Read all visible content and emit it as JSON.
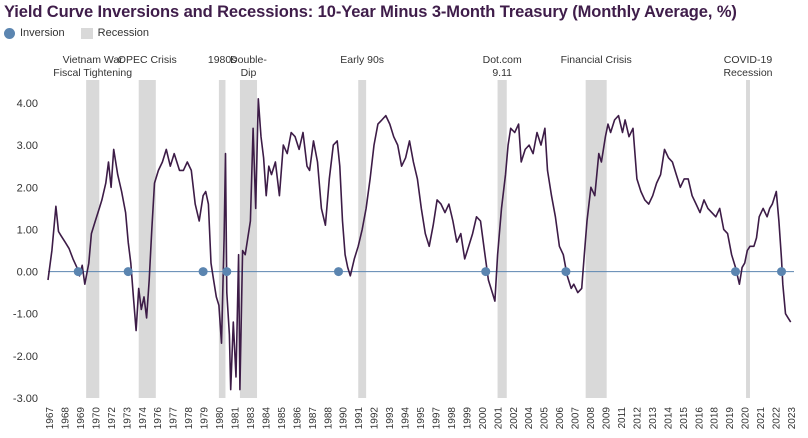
{
  "title": "Yield Curve Inversions and Recessions: 10-Year Minus 3-Month Treasury (Monthly Average, %)",
  "legend": {
    "inversion": "Inversion",
    "recession": "Recession"
  },
  "colors": {
    "line": "#3d1c47",
    "inversion": "#5b85b0",
    "recession": "#d9d9d9",
    "zero_line": "#5b85b0"
  },
  "chart_data": {
    "type": "line",
    "title": "Yield Curve Inversions and Recessions: 10-Year Minus 3-Month Treasury (Monthly Average, %)",
    "xlabel": "",
    "ylabel": "",
    "ylim": [
      -3.0,
      4.25
    ],
    "xlim": [
      1967.0,
      2023.75
    ],
    "y_ticks": [
      4.0,
      3.0,
      2.0,
      1.0,
      0.0,
      -1.0,
      -2.0,
      -3.0
    ],
    "y_tick_labels": [
      "4.00",
      "3.00",
      "2.00",
      "1.00",
      "0.00",
      "-1.00",
      "-2.00",
      "-3.00"
    ],
    "x_tick_labels": [
      "1967",
      "1968",
      "1969",
      "1970",
      "1972",
      "1973",
      "1974",
      "1976",
      "1977",
      "1978",
      "1979",
      "1980",
      "1981",
      "1983",
      "1984",
      "1985",
      "1986",
      "1987",
      "1988",
      "1990",
      "1991",
      "1992",
      "1993",
      "1994",
      "1995",
      "1997",
      "1998",
      "1999",
      "2000",
      "2001",
      "2002",
      "2004",
      "2005",
      "2006",
      "2007",
      "2008",
      "2009",
      "2011",
      "2012",
      "2013",
      "2014",
      "2015",
      "2016",
      "2018",
      "2019",
      "2020",
      "2021",
      "2022",
      "2023"
    ],
    "grid": false,
    "legend_position": "top-left",
    "series": [
      {
        "name": "10-Year Minus 3-Month Treasury",
        "points": [
          [
            1967.0,
            -0.2
          ],
          [
            1967.3,
            0.5
          ],
          [
            1967.6,
            1.55
          ],
          [
            1967.8,
            0.95
          ],
          [
            1968.0,
            0.85
          ],
          [
            1968.3,
            0.7
          ],
          [
            1968.6,
            0.55
          ],
          [
            1968.9,
            0.3
          ],
          [
            1969.2,
            0.1
          ],
          [
            1969.4,
            -0.1
          ],
          [
            1969.6,
            0.15
          ],
          [
            1969.8,
            -0.3
          ],
          [
            1970.1,
            0.2
          ],
          [
            1970.3,
            0.9
          ],
          [
            1970.6,
            1.2
          ],
          [
            1970.9,
            1.5
          ],
          [
            1971.1,
            1.7
          ],
          [
            1971.4,
            2.1
          ],
          [
            1971.6,
            2.6
          ],
          [
            1971.8,
            2.0
          ],
          [
            1972.0,
            2.9
          ],
          [
            1972.3,
            2.3
          ],
          [
            1972.6,
            1.9
          ],
          [
            1972.9,
            1.4
          ],
          [
            1973.1,
            0.7
          ],
          [
            1973.3,
            0.2
          ],
          [
            1973.5,
            -0.6
          ],
          [
            1973.7,
            -1.4
          ],
          [
            1973.9,
            -0.4
          ],
          [
            1974.1,
            -0.9
          ],
          [
            1974.3,
            -0.6
          ],
          [
            1974.5,
            -1.1
          ],
          [
            1974.7,
            -0.2
          ],
          [
            1974.9,
            1.0
          ],
          [
            1975.1,
            2.1
          ],
          [
            1975.4,
            2.4
          ],
          [
            1975.7,
            2.6
          ],
          [
            1976.0,
            2.9
          ],
          [
            1976.3,
            2.5
          ],
          [
            1976.6,
            2.8
          ],
          [
            1977.0,
            2.4
          ],
          [
            1977.3,
            2.4
          ],
          [
            1977.6,
            2.6
          ],
          [
            1977.9,
            2.4
          ],
          [
            1978.2,
            1.6
          ],
          [
            1978.5,
            1.2
          ],
          [
            1978.8,
            1.8
          ],
          [
            1979.0,
            1.9
          ],
          [
            1979.2,
            1.6
          ],
          [
            1979.4,
            0.2
          ],
          [
            1979.6,
            -0.2
          ],
          [
            1979.8,
            -0.6
          ],
          [
            1980.0,
            -0.8
          ],
          [
            1980.2,
            -1.7
          ],
          [
            1980.4,
            0.8
          ],
          [
            1980.5,
            2.8
          ],
          [
            1980.6,
            -0.5
          ],
          [
            1980.8,
            -1.5
          ],
          [
            1980.9,
            -2.8
          ],
          [
            1981.1,
            -1.2
          ],
          [
            1981.3,
            -2.5
          ],
          [
            1981.5,
            0.4
          ],
          [
            1981.6,
            -2.8
          ],
          [
            1981.8,
            0.5
          ],
          [
            1982.0,
            0.4
          ],
          [
            1982.2,
            0.8
          ],
          [
            1982.4,
            1.2
          ],
          [
            1982.6,
            3.4
          ],
          [
            1982.8,
            1.5
          ],
          [
            1983.0,
            4.1
          ],
          [
            1983.2,
            3.2
          ],
          [
            1983.4,
            2.7
          ],
          [
            1983.6,
            1.8
          ],
          [
            1983.8,
            2.5
          ],
          [
            1984.0,
            2.3
          ],
          [
            1984.3,
            2.6
          ],
          [
            1984.6,
            1.8
          ],
          [
            1984.9,
            3.0
          ],
          [
            1985.2,
            2.8
          ],
          [
            1985.5,
            3.3
          ],
          [
            1985.8,
            3.2
          ],
          [
            1986.1,
            2.9
          ],
          [
            1986.4,
            3.3
          ],
          [
            1986.7,
            2.5
          ],
          [
            1986.9,
            2.4
          ],
          [
            1987.2,
            3.1
          ],
          [
            1987.5,
            2.6
          ],
          [
            1987.8,
            1.5
          ],
          [
            1988.1,
            1.1
          ],
          [
            1988.4,
            2.2
          ],
          [
            1988.7,
            3.0
          ],
          [
            1989.0,
            3.1
          ],
          [
            1989.2,
            2.5
          ],
          [
            1989.4,
            1.2
          ],
          [
            1989.6,
            0.4
          ],
          [
            1989.8,
            0.1
          ],
          [
            1990.0,
            -0.1
          ],
          [
            1990.3,
            0.3
          ],
          [
            1990.6,
            0.6
          ],
          [
            1990.9,
            1.0
          ],
          [
            1991.2,
            1.5
          ],
          [
            1991.5,
            2.2
          ],
          [
            1991.8,
            3.0
          ],
          [
            1992.1,
            3.5
          ],
          [
            1992.4,
            3.6
          ],
          [
            1992.7,
            3.7
          ],
          [
            1993.0,
            3.5
          ],
          [
            1993.3,
            3.2
          ],
          [
            1993.6,
            3.0
          ],
          [
            1993.9,
            2.5
          ],
          [
            1994.2,
            2.7
          ],
          [
            1994.5,
            3.1
          ],
          [
            1994.8,
            2.6
          ],
          [
            1995.1,
            2.2
          ],
          [
            1995.4,
            1.5
          ],
          [
            1995.7,
            0.9
          ],
          [
            1996.0,
            0.6
          ],
          [
            1996.3,
            1.1
          ],
          [
            1996.6,
            1.7
          ],
          [
            1996.9,
            1.6
          ],
          [
            1997.2,
            1.4
          ],
          [
            1997.5,
            1.6
          ],
          [
            1997.8,
            1.2
          ],
          [
            1998.1,
            0.7
          ],
          [
            1998.4,
            0.9
          ],
          [
            1998.7,
            0.3
          ],
          [
            1999.0,
            0.6
          ],
          [
            1999.3,
            0.9
          ],
          [
            1999.6,
            1.3
          ],
          [
            1999.9,
            1.2
          ],
          [
            2000.2,
            0.5
          ],
          [
            2000.5,
            -0.2
          ],
          [
            2000.8,
            -0.5
          ],
          [
            2001.0,
            -0.7
          ],
          [
            2001.2,
            0.4
          ],
          [
            2001.5,
            1.5
          ],
          [
            2001.8,
            2.3
          ],
          [
            2002.0,
            3.0
          ],
          [
            2002.2,
            3.4
          ],
          [
            2002.5,
            3.3
          ],
          [
            2002.8,
            3.5
          ],
          [
            2003.0,
            2.6
          ],
          [
            2003.3,
            2.9
          ],
          [
            2003.6,
            3.0
          ],
          [
            2003.9,
            2.8
          ],
          [
            2004.2,
            3.3
          ],
          [
            2004.5,
            3.0
          ],
          [
            2004.8,
            3.4
          ],
          [
            2005.0,
            2.4
          ],
          [
            2005.3,
            1.8
          ],
          [
            2005.6,
            1.3
          ],
          [
            2005.9,
            0.6
          ],
          [
            2006.2,
            0.4
          ],
          [
            2006.5,
            -0.1
          ],
          [
            2006.8,
            -0.4
          ],
          [
            2007.0,
            -0.3
          ],
          [
            2007.3,
            -0.5
          ],
          [
            2007.6,
            -0.4
          ],
          [
            2007.8,
            0.4
          ],
          [
            2008.0,
            1.2
          ],
          [
            2008.3,
            2.0
          ],
          [
            2008.6,
            1.8
          ],
          [
            2008.9,
            2.8
          ],
          [
            2009.1,
            2.6
          ],
          [
            2009.4,
            3.2
          ],
          [
            2009.6,
            3.5
          ],
          [
            2009.8,
            3.3
          ],
          [
            2010.1,
            3.6
          ],
          [
            2010.4,
            3.7
          ],
          [
            2010.7,
            3.3
          ],
          [
            2010.9,
            3.6
          ],
          [
            2011.2,
            3.2
          ],
          [
            2011.5,
            3.4
          ],
          [
            2011.8,
            2.2
          ],
          [
            2012.1,
            1.9
          ],
          [
            2012.4,
            1.7
          ],
          [
            2012.7,
            1.6
          ],
          [
            2013.0,
            1.8
          ],
          [
            2013.3,
            2.1
          ],
          [
            2013.6,
            2.3
          ],
          [
            2013.9,
            2.9
          ],
          [
            2014.2,
            2.7
          ],
          [
            2014.5,
            2.6
          ],
          [
            2014.8,
            2.3
          ],
          [
            2015.1,
            2.0
          ],
          [
            2015.4,
            2.2
          ],
          [
            2015.7,
            2.2
          ],
          [
            2016.0,
            1.8
          ],
          [
            2016.3,
            1.6
          ],
          [
            2016.6,
            1.4
          ],
          [
            2016.9,
            1.7
          ],
          [
            2017.2,
            1.5
          ],
          [
            2017.5,
            1.4
          ],
          [
            2017.8,
            1.3
          ],
          [
            2018.1,
            1.5
          ],
          [
            2018.4,
            1.0
          ],
          [
            2018.7,
            0.9
          ],
          [
            2019.0,
            0.4
          ],
          [
            2019.3,
            0.1
          ],
          [
            2019.6,
            -0.3
          ],
          [
            2019.8,
            0.1
          ],
          [
            2020.0,
            0.2
          ],
          [
            2020.2,
            0.5
          ],
          [
            2020.4,
            0.6
          ],
          [
            2020.7,
            0.6
          ],
          [
            2020.9,
            0.8
          ],
          [
            2021.1,
            1.3
          ],
          [
            2021.4,
            1.5
          ],
          [
            2021.7,
            1.3
          ],
          [
            2021.9,
            1.5
          ],
          [
            2022.1,
            1.6
          ],
          [
            2022.4,
            1.9
          ],
          [
            2022.6,
            1.2
          ],
          [
            2022.8,
            0.3
          ],
          [
            2022.9,
            -0.3
          ],
          [
            2023.1,
            -1.0
          ],
          [
            2023.3,
            -1.1
          ],
          [
            2023.5,
            -1.2
          ]
        ]
      }
    ],
    "inversions": [
      1969.3,
      1973.1,
      1978.8,
      1980.6,
      1989.1,
      2000.3,
      2006.4,
      2019.3,
      2022.8
    ],
    "recessions": [
      {
        "start": 1969.9,
        "end": 1970.9,
        "label": [
          "Vietnam War",
          "Fiscal Tightening"
        ]
      },
      {
        "start": 1973.9,
        "end": 1975.2,
        "label": [
          "OPEC Crisis"
        ]
      },
      {
        "start": 1980.0,
        "end": 1980.5,
        "label": [
          "1980s"
        ]
      },
      {
        "start": 1981.6,
        "end": 1982.9,
        "label": [
          "Double-",
          "Dip"
        ]
      },
      {
        "start": 1990.6,
        "end": 1991.2,
        "label": [
          "Early 90s"
        ]
      },
      {
        "start": 2001.2,
        "end": 2001.9,
        "label": [
          "Dot.com",
          "9.11"
        ]
      },
      {
        "start": 2007.9,
        "end": 2009.5,
        "label": [
          "Financial Crisis"
        ]
      },
      {
        "start": 2020.1,
        "end": 2020.4,
        "label": [
          "COVID-19",
          "Recession"
        ]
      }
    ]
  }
}
